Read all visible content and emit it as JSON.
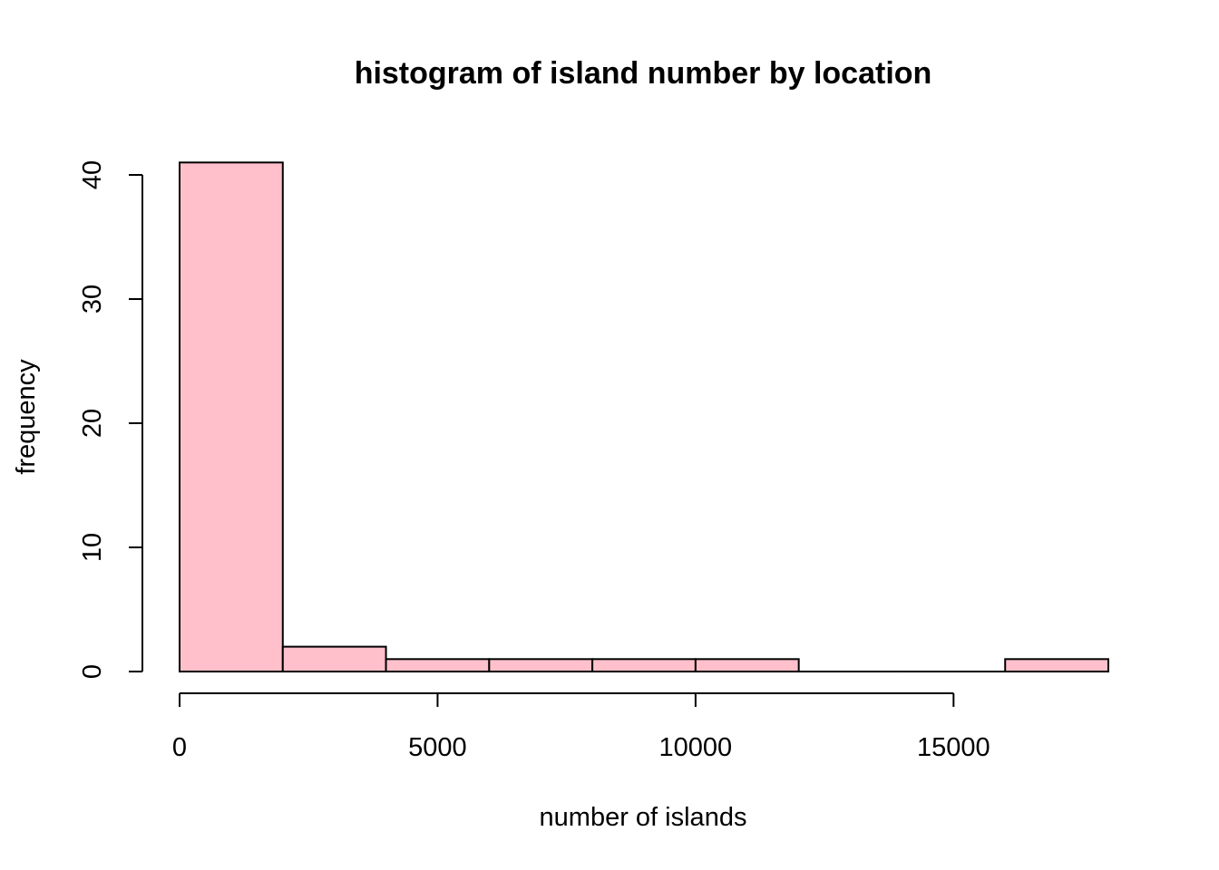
{
  "chart_data": {
    "type": "bar",
    "title": "histogram of island number by location",
    "xlabel": "number of islands",
    "ylabel": "frequency",
    "bins": [
      {
        "start": 0,
        "end": 2000,
        "count": 41
      },
      {
        "start": 2000,
        "end": 4000,
        "count": 2
      },
      {
        "start": 4000,
        "end": 6000,
        "count": 1
      },
      {
        "start": 6000,
        "end": 8000,
        "count": 1
      },
      {
        "start": 8000,
        "end": 10000,
        "count": 1
      },
      {
        "start": 10000,
        "end": 12000,
        "count": 1
      },
      {
        "start": 12000,
        "end": 14000,
        "count": 0
      },
      {
        "start": 14000,
        "end": 16000,
        "count": 0
      },
      {
        "start": 16000,
        "end": 18000,
        "count": 1
      }
    ],
    "xlim": [
      0,
      18000
    ],
    "ylim": [
      0,
      40
    ],
    "x_ticks": [
      0,
      5000,
      10000,
      15000
    ],
    "y_ticks": [
      0,
      10,
      20,
      30,
      40
    ],
    "bar_color": "#FFC0CB",
    "grid": false,
    "legend": "none"
  }
}
